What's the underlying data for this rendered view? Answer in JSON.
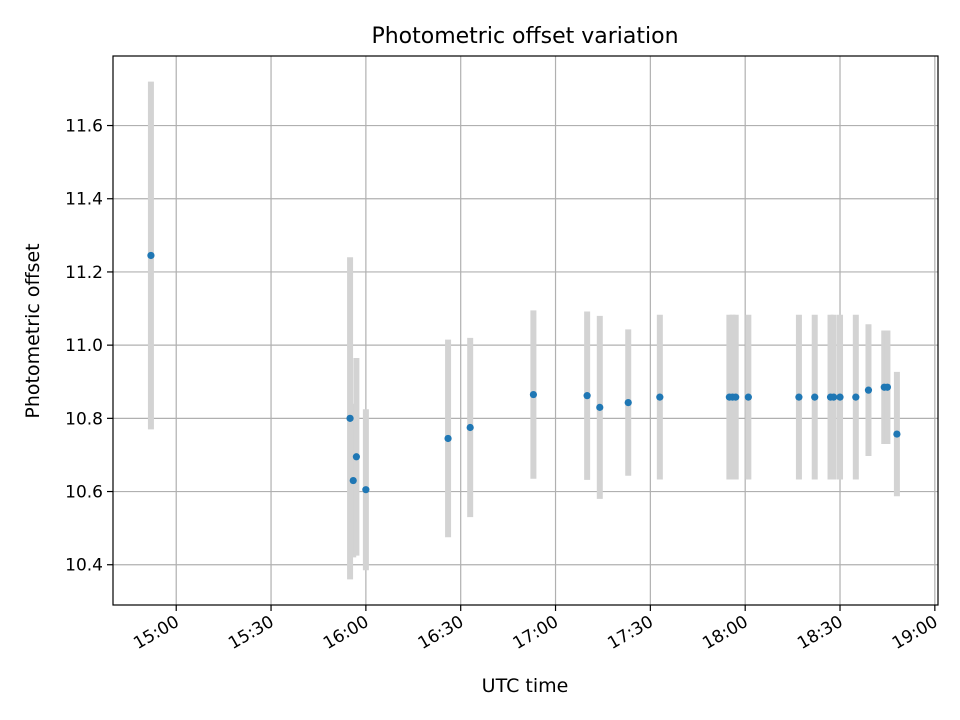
{
  "chart_data": {
    "type": "scatter",
    "title": "Photometric offset variation",
    "xlabel": "UTC time",
    "ylabel": "Photometric offset",
    "x_axis": {
      "type": "time",
      "range": [
        "14:40",
        "19:01"
      ],
      "ticks": [
        "15:00",
        "15:30",
        "16:00",
        "16:30",
        "17:00",
        "17:30",
        "18:00",
        "18:30",
        "19:00"
      ]
    },
    "y_axis": {
      "range": [
        10.29,
        11.79
      ],
      "ticks": [
        "10.4",
        "10.6",
        "10.8",
        "11.0",
        "11.2",
        "11.4",
        "11.6"
      ]
    },
    "grid": true,
    "colors": {
      "point": "#1f77b4",
      "errorbar": "#d3d3d3",
      "grid": "#b0b0b0"
    },
    "points": [
      {
        "time": "14:52",
        "y": 11.245,
        "err": 0.475
      },
      {
        "time": "15:55",
        "y": 10.8,
        "err": 0.44
      },
      {
        "time": "15:56",
        "y": 10.63,
        "err": 0.21
      },
      {
        "time": "15:57",
        "y": 10.695,
        "err": 0.27
      },
      {
        "time": "16:00",
        "y": 10.605,
        "err": 0.22
      },
      {
        "time": "16:26",
        "y": 10.745,
        "err": 0.27
      },
      {
        "time": "16:33",
        "y": 10.775,
        "err": 0.245
      },
      {
        "time": "16:53",
        "y": 10.865,
        "err": 0.23
      },
      {
        "time": "17:10",
        "y": 10.862,
        "err": 0.23
      },
      {
        "time": "17:14",
        "y": 10.83,
        "err": 0.25
      },
      {
        "time": "17:23",
        "y": 10.843,
        "err": 0.2
      },
      {
        "time": "17:33",
        "y": 10.858,
        "err": 0.225
      },
      {
        "time": "17:55",
        "y": 10.858,
        "err": 0.225
      },
      {
        "time": "17:56",
        "y": 10.858,
        "err": 0.225
      },
      {
        "time": "17:57",
        "y": 10.858,
        "err": 0.225
      },
      {
        "time": "18:01",
        "y": 10.858,
        "err": 0.225
      },
      {
        "time": "18:17",
        "y": 10.858,
        "err": 0.225
      },
      {
        "time": "18:22",
        "y": 10.858,
        "err": 0.225
      },
      {
        "time": "18:27",
        "y": 10.858,
        "err": 0.225
      },
      {
        "time": "18:28",
        "y": 10.858,
        "err": 0.225
      },
      {
        "time": "18:30",
        "y": 10.858,
        "err": 0.225
      },
      {
        "time": "18:35",
        "y": 10.858,
        "err": 0.225
      },
      {
        "time": "18:39",
        "y": 10.877,
        "err": 0.18
      },
      {
        "time": "18:44",
        "y": 10.885,
        "err": 0.155
      },
      {
        "time": "18:45",
        "y": 10.885,
        "err": 0.155
      },
      {
        "time": "18:48",
        "y": 10.757,
        "err": 0.17
      }
    ]
  }
}
